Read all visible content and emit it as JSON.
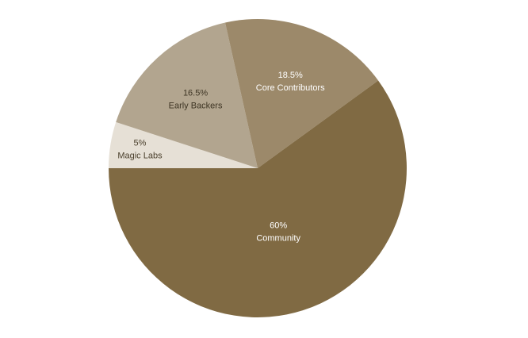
{
  "chart_data": {
    "type": "pie",
    "categories": [
      "Magic Labs",
      "Early Backers",
      "Core Contributors",
      "Community"
    ],
    "values": [
      5,
      16.5,
      18.5,
      60
    ],
    "value_labels": [
      "5%",
      "16.5%",
      "18.5%",
      "60%"
    ],
    "colors": [
      "#e6e0d6",
      "#b2a58f",
      "#9c896a",
      "#806a43"
    ]
  }
}
